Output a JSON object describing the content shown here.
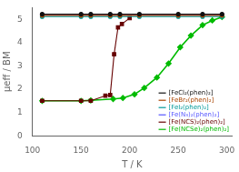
{
  "chart_data": {
    "type": "line",
    "x_label": "T / K",
    "y_label": "μeff / BM",
    "xlim": [
      100,
      305
    ],
    "ylim": [
      0,
      5.5
    ],
    "xticks": [
      100,
      150,
      200,
      250,
      300
    ],
    "yticks": [
      0,
      1,
      2,
      3,
      4,
      5
    ],
    "grid": false,
    "legend": "lower right",
    "series": [
      {
        "name": "[FeCl₂(phen)₂]",
        "color": "#111111",
        "marker": "circle",
        "x": [
          110,
          150,
          160,
          180,
          190,
          210,
          250,
          275,
          295
        ],
        "values": [
          5.22,
          5.22,
          5.22,
          5.22,
          5.22,
          5.22,
          5.22,
          5.22,
          5.22
        ]
      },
      {
        "name": "[FeBr₂(phen)₂]",
        "color": "#aa4400",
        "marker": "circle",
        "x": [
          110,
          150,
          160,
          180,
          190,
          210,
          250,
          275,
          295
        ],
        "values": [
          5.17,
          5.17,
          5.17,
          5.17,
          5.17,
          5.17,
          5.17,
          5.17,
          5.17
        ]
      },
      {
        "name": "[FeI₂(phen)₂]",
        "color": "#009999",
        "marker": "circle",
        "x": [
          110,
          150,
          160,
          180,
          190,
          210,
          250,
          275,
          295
        ],
        "values": [
          5.12,
          5.12,
          5.12,
          5.12,
          5.12,
          5.12,
          5.12,
          5.12,
          5.12
        ]
      },
      {
        "name": "[Fe(N₃)₂(phen)₂]",
        "color": "#5555ff",
        "marker": "circle",
        "x": [
          110,
          150,
          160,
          180,
          190,
          210,
          250,
          275,
          295
        ],
        "values": [
          5.19,
          5.19,
          5.19,
          5.19,
          5.19,
          5.19,
          5.19,
          5.19,
          5.19
        ]
      },
      {
        "name": "[Fe(NCS)₂(phen)₂]",
        "color": "#660000",
        "marker": "square",
        "x": [
          110,
          150,
          160,
          175,
          180,
          184,
          188,
          192,
          200
        ],
        "values": [
          1.5,
          1.5,
          1.5,
          1.72,
          1.75,
          3.5,
          4.65,
          4.8,
          5.05
        ]
      },
      {
        "name": "[Fe(NCSe)₂(phen)₂]",
        "color": "#00bb00",
        "marker": "diamond",
        "x": [
          110,
          150,
          160,
          183,
          193,
          205,
          215,
          228,
          240,
          252,
          263,
          275,
          285,
          295
        ],
        "values": [
          1.5,
          1.5,
          1.52,
          1.58,
          1.62,
          1.78,
          2.05,
          2.5,
          3.1,
          3.8,
          4.3,
          4.75,
          4.95,
          5.1
        ]
      }
    ]
  }
}
